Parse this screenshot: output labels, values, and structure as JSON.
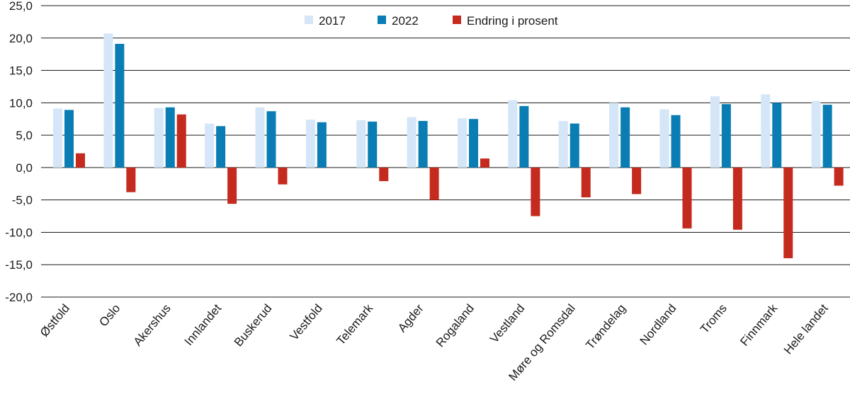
{
  "chart_data": {
    "type": "bar",
    "title": "",
    "xlabel": "",
    "ylabel": "",
    "ylim": [
      -20,
      25
    ],
    "yticks": [
      25,
      20,
      15,
      10,
      5,
      0,
      -5,
      -10,
      -15,
      -20
    ],
    "ytick_labels": [
      "25,0",
      "20,0",
      "15,0",
      "10,0",
      "5,0",
      "0,0",
      "-5,0",
      "-10,0",
      "-15,0",
      "-20,0"
    ],
    "grid": true,
    "legend_position": "top-center",
    "categories": [
      "Østfold",
      "Oslo",
      "Akershus",
      "Innlandet",
      "Buskerud",
      "Vestfold",
      "Telemark",
      "Agder",
      "Rogaland",
      "Vestland",
      "Møre og Romsdal",
      "Trøndelag",
      "Nordland",
      "Troms",
      "Finnmark",
      "Hele landet"
    ],
    "series": [
      {
        "name": "2017",
        "color": "#d4e6f7",
        "values": [
          9.1,
          20.7,
          9.2,
          6.8,
          9.3,
          7.4,
          7.3,
          7.8,
          7.6,
          10.4,
          7.2,
          10.0,
          9.0,
          11.0,
          11.3,
          10.3
        ]
      },
      {
        "name": "2022",
        "color": "#0a7db4",
        "values": [
          8.9,
          19.1,
          9.3,
          6.4,
          8.7,
          7.0,
          7.1,
          7.2,
          7.5,
          9.5,
          6.8,
          9.3,
          8.1,
          9.8,
          10.0,
          9.7
        ]
      },
      {
        "name": "Endring i prosent",
        "color": "#c52a1e",
        "values": [
          2.2,
          -3.8,
          8.2,
          -5.6,
          -2.6,
          0.0,
          -2.1,
          -5.0,
          1.4,
          -7.5,
          -4.6,
          -4.1,
          -9.4,
          -9.6,
          -14.0,
          -2.8
        ]
      }
    ]
  }
}
